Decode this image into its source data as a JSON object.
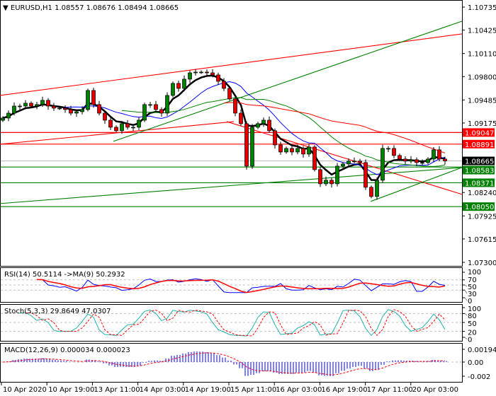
{
  "header": {
    "symbol": "EURUSD,H1",
    "open": "1.08557",
    "high": "1.08676",
    "low": "1.08494",
    "close": "1.08665"
  },
  "colors": {
    "bull": "#008000",
    "bear": "#e00000",
    "ma_fast": "#000000",
    "ma_blue": "#0000ff",
    "ma_green": "#008000",
    "ma_red": "#ff0000",
    "rsi": "#0000ff",
    "rsi_ma": "#ff0000",
    "stoch_main": "#20b2aa",
    "stoch_signal": "#ff0000",
    "macd_hist": "#0000ff",
    "macd_signal": "#ff0000",
    "grid": "#c0c0c0"
  },
  "chart_data": {
    "type": "candlestick",
    "ylim": [
      1.073,
      1.10735
    ],
    "price_ticks": [
      "1.10735",
      "1.10425",
      "1.10110",
      "1.09800",
      "1.09485",
      "1.09175",
      "1.08240",
      "1.07925",
      "1.07615",
      "1.07300"
    ],
    "closes": [
      1.09242,
      1.09308,
      1.09403,
      1.09403,
      1.09441,
      1.09403,
      1.09423,
      1.0948,
      1.09403,
      1.09375,
      1.09375,
      1.09356,
      1.09308,
      1.09327,
      1.09356,
      1.09613,
      1.09423,
      1.09308,
      1.09213,
      1.09118,
      1.09071,
      1.09166,
      1.09118,
      1.09118,
      1.09213,
      1.09423,
      1.09423,
      1.09356,
      1.09308,
      1.09546,
      1.09708,
      1.09641,
      1.09765,
      1.0985,
      1.0986,
      1.0986,
      1.0985,
      1.09822,
      1.09736,
      1.09641,
      1.09499,
      1.09308,
      1.09166,
      1.08595,
      1.09118,
      1.09166,
      1.09213,
      1.09071,
      1.0888,
      1.08785,
      1.08833,
      1.08785,
      1.08833,
      1.08757,
      1.08852,
      1.08548,
      1.08357,
      1.08405,
      1.08357,
      1.08595,
      1.08624,
      1.08662,
      1.08662,
      1.08643,
      1.0831,
      1.08186,
      1.08405,
      1.08833,
      1.08833,
      1.08738,
      1.0869,
      1.08662,
      1.08681,
      1.08643,
      1.08643,
      1.0869,
      1.08814,
      1.0869,
      1.08665
    ],
    "price_labels": [
      {
        "value": "1.09047",
        "bg": "#ff0000",
        "fg": "#ffffff"
      },
      {
        "value": "1.08891",
        "bg": "#ff0000",
        "fg": "#ffffff"
      },
      {
        "value": "1.08665",
        "bg": "#000000",
        "fg": "#ffffff"
      },
      {
        "value": "1.08583",
        "bg": "#008000",
        "fg": "#ffffff"
      },
      {
        "value": "1.08371",
        "bg": "#008000",
        "fg": "#ffffff"
      },
      {
        "value": "1.08050",
        "bg": "#008000",
        "fg": "#ffffff"
      }
    ],
    "horizontal_lines": [
      {
        "price": 1.09047,
        "color": "#ff0000"
      },
      {
        "price": 1.08891,
        "color": "#ff0000"
      },
      {
        "price": 1.08665,
        "color": "#c0c0c0"
      },
      {
        "price": 1.08583,
        "color": "#008000"
      },
      {
        "price": 1.08371,
        "color": "#008000"
      },
      {
        "price": 1.0805,
        "color": "#008000"
      }
    ],
    "trend_lines": [
      {
        "from": [
          -0.5,
          1.09546
        ],
        "to": [
          81,
          1.10374
        ],
        "color": "#ff0000"
      },
      {
        "from": [
          -0.5,
          1.0889
        ],
        "to": [
          40.75,
          1.09194
        ],
        "color": "#ff0000"
      },
      {
        "from": [
          39.5,
          1.09194
        ],
        "to": [
          81,
          1.08215
        ],
        "color": "#ff0000"
      },
      {
        "from": [
          19.5,
          1.08928
        ],
        "to": [
          81,
          1.10545
        ],
        "color": "#008000"
      },
      {
        "from": [
          -0.5,
          1.08091
        ],
        "to": [
          81,
          1.08576
        ],
        "color": "#008000"
      },
      {
        "from": [
          64.9,
          1.0812
        ],
        "to": [
          81,
          1.08576
        ],
        "color": "#008000"
      }
    ],
    "time_labels": [
      "10 Apr 2020",
      "10 Apr 19:00",
      "13 Apr 11:00",
      "14 Apr 03:00",
      "14 Apr 19:00",
      "15 Apr 11:00",
      "16 Apr 03:00",
      "16 Apr 19:00",
      "17 Apr 11:00",
      "20 Apr 03:00"
    ]
  },
  "indicators": {
    "rsi": {
      "label": "RSI(14) 50.5114  ->MA(9) 50.2932",
      "levels": [
        "100",
        "70",
        "50",
        "30",
        "0"
      ]
    },
    "stoch": {
      "label": "Stoch(5,3,3) 29.8649 47.0307",
      "levels": [
        "100",
        "80",
        "50",
        "20",
        "0"
      ]
    },
    "macd": {
      "label": "MACD(12,26,9) 0.000034 0.000023",
      "levels": [
        "0.001941",
        "0.00",
        "-0.002"
      ]
    }
  }
}
